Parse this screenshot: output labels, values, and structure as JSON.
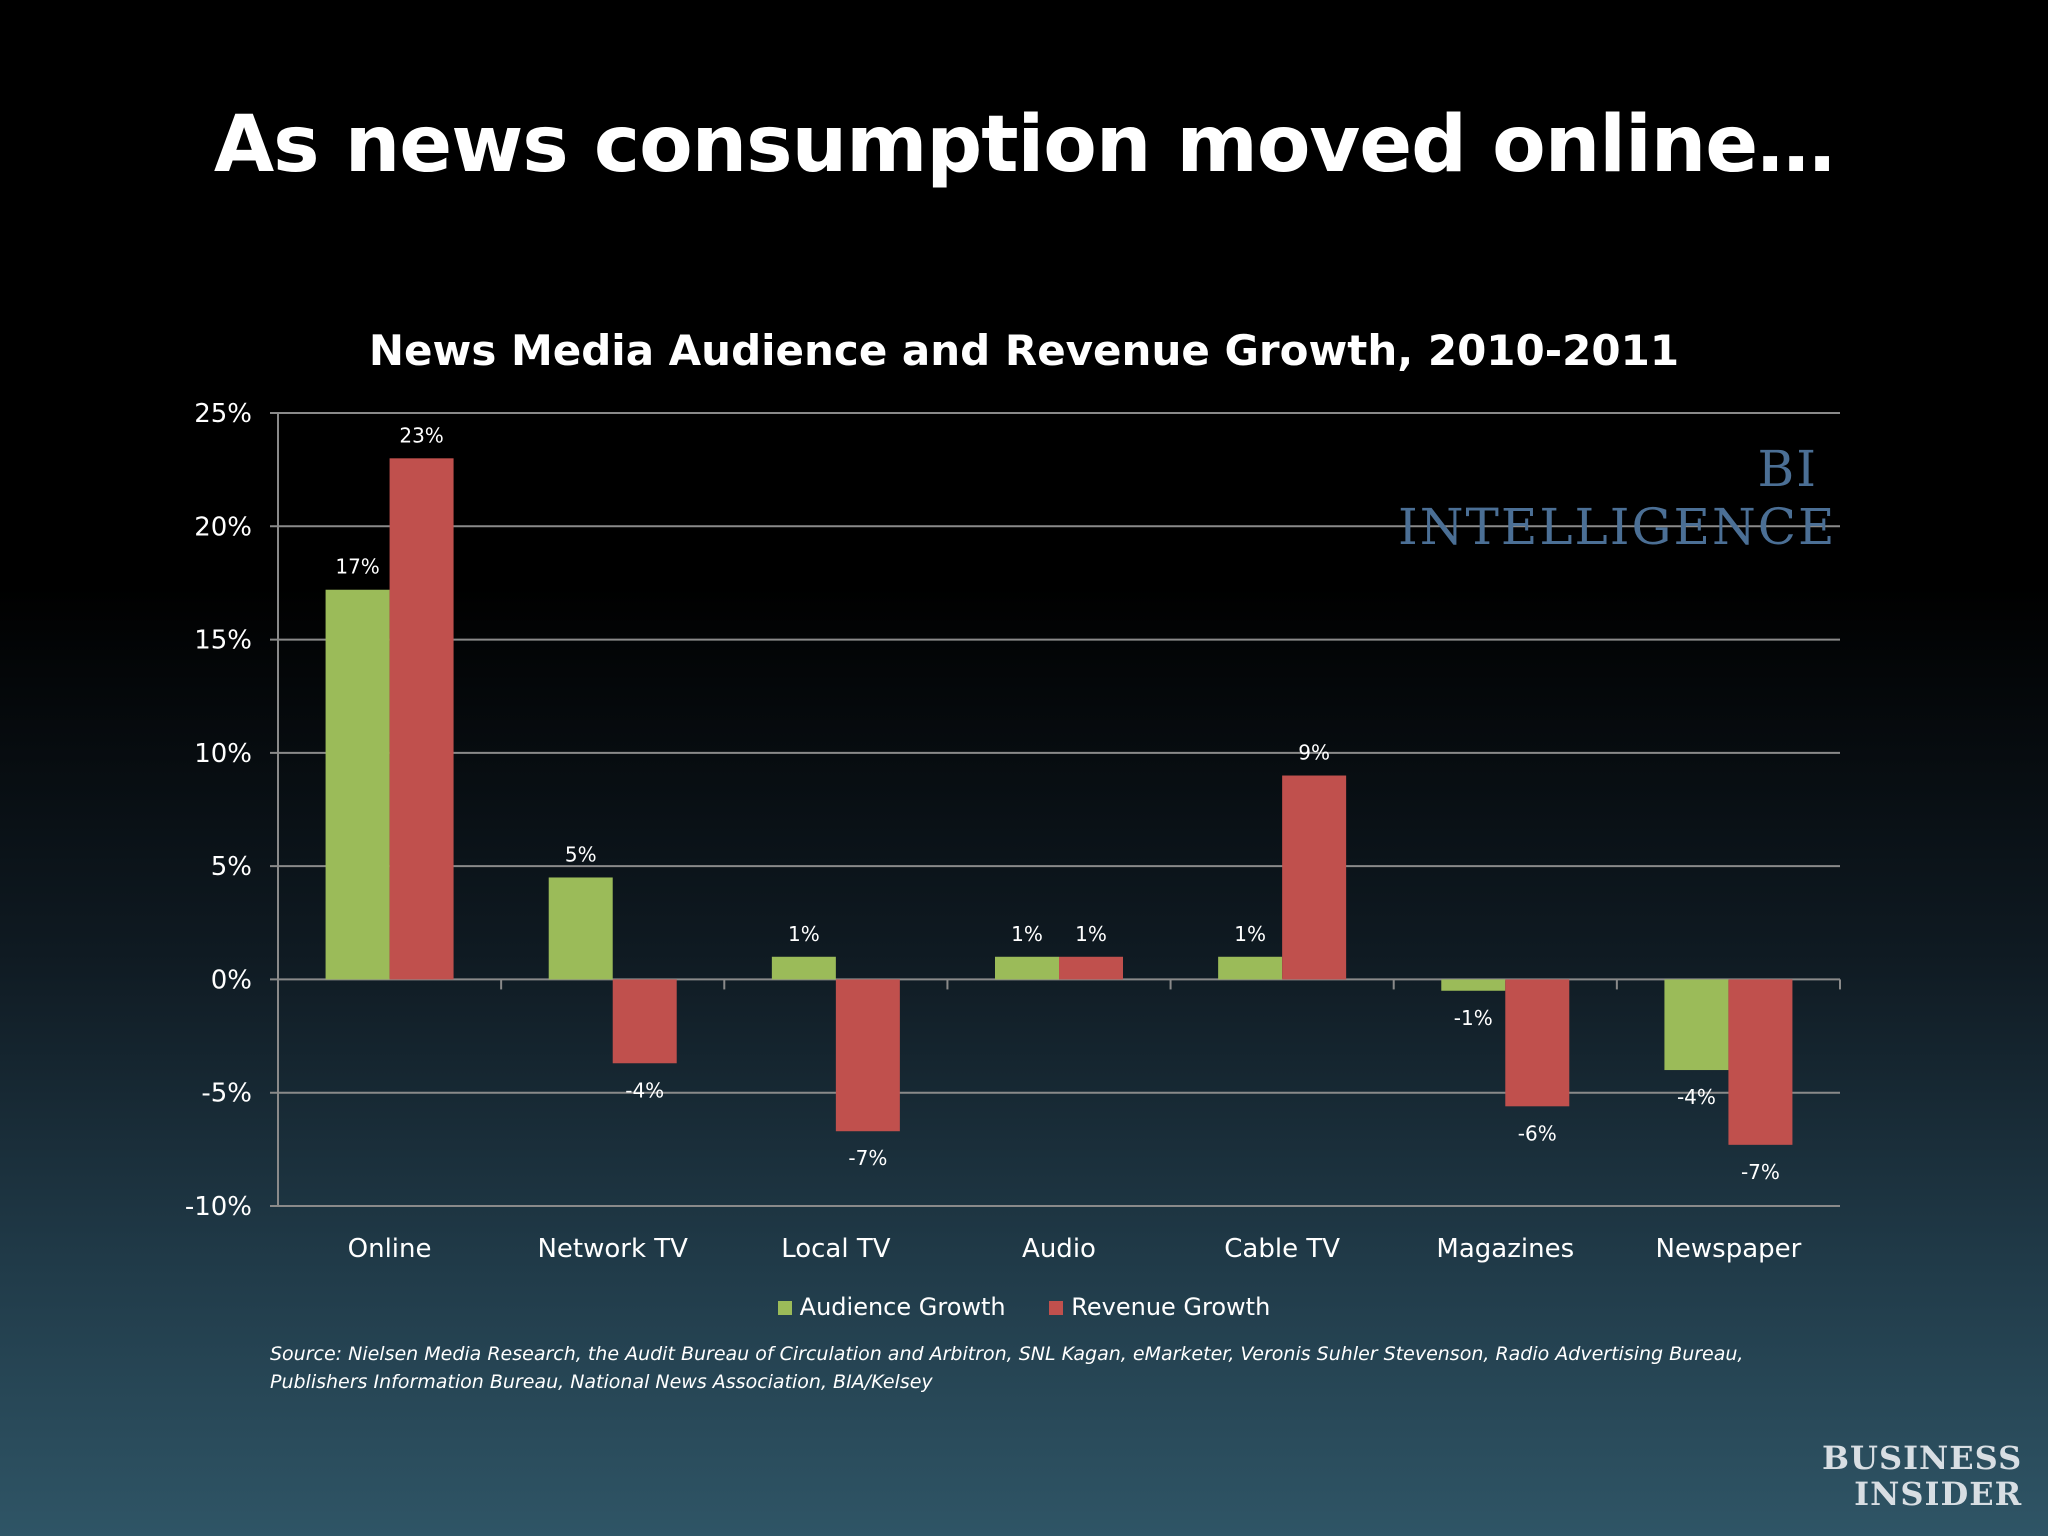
{
  "slide_title": "As news consumption moved online…",
  "watermark": "BI INTELLIGENCE",
  "source": "Source: Nielsen Media Research, the Audit Bureau of Circulation and Arbitron, SNL Kagan, eMarketer, Veronis Suhler Stevenson, Radio Advertising Bureau, Publishers Information Bureau, National News Association, BIA/Kelsey",
  "logo": {
    "line1": "BUSINESS",
    "line2": "INSIDER"
  },
  "colors": {
    "audience": "#9bbb59",
    "revenue": "#c0504d",
    "grid": "#8a8a8a"
  },
  "chart_data": {
    "type": "bar",
    "title": "News Media Audience and Revenue Growth, 2010-2011",
    "xlabel": "",
    "ylabel": "",
    "categories": [
      "Online",
      "Network TV",
      "Local TV",
      "Audio",
      "Cable TV",
      "Magazines",
      "Newspaper"
    ],
    "series": [
      {
        "name": "Audience Growth",
        "values": [
          17.2,
          4.5,
          1.0,
          1.0,
          1.0,
          -0.5,
          -4.0
        ],
        "labels": [
          "17%",
          "5%",
          "1%",
          "1%",
          "1%",
          "-1%",
          "-4%"
        ]
      },
      {
        "name": "Revenue Growth",
        "values": [
          23.0,
          -3.7,
          -6.7,
          1.0,
          9.0,
          -5.6,
          -7.3
        ],
        "labels": [
          "23%",
          "-4%",
          "-7%",
          "1%",
          "9%",
          "-6%",
          "-7%"
        ]
      }
    ],
    "ylim": [
      -10,
      25
    ],
    "yticks": [
      25,
      20,
      15,
      10,
      5,
      0,
      -5,
      -10
    ],
    "ytick_labels": [
      "25%",
      "20%",
      "15%",
      "10%",
      "5%",
      "0%",
      "-5%",
      "-10%"
    ],
    "grid": true,
    "legend_position": "bottom"
  }
}
